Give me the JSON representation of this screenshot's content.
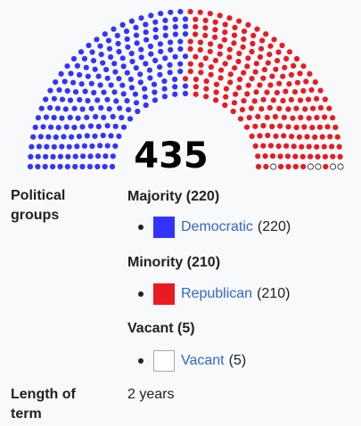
{
  "seat_total": "435",
  "political_groups_label": "Political groups",
  "groups": [
    {
      "heading": "Majority (220)",
      "party": "Democratic",
      "count": "(220)",
      "seats": 220,
      "color": "#3333ff"
    },
    {
      "heading": "Minority (210)",
      "party": "Republican",
      "count": "(210)",
      "seats": 210,
      "color": "#e81b23"
    },
    {
      "heading": "Vacant (5)",
      "party": "Vacant",
      "count": "(5)",
      "seats": 5,
      "color": "#ffffff"
    }
  ],
  "term": {
    "label": "Length of term",
    "value": "2 years"
  }
}
